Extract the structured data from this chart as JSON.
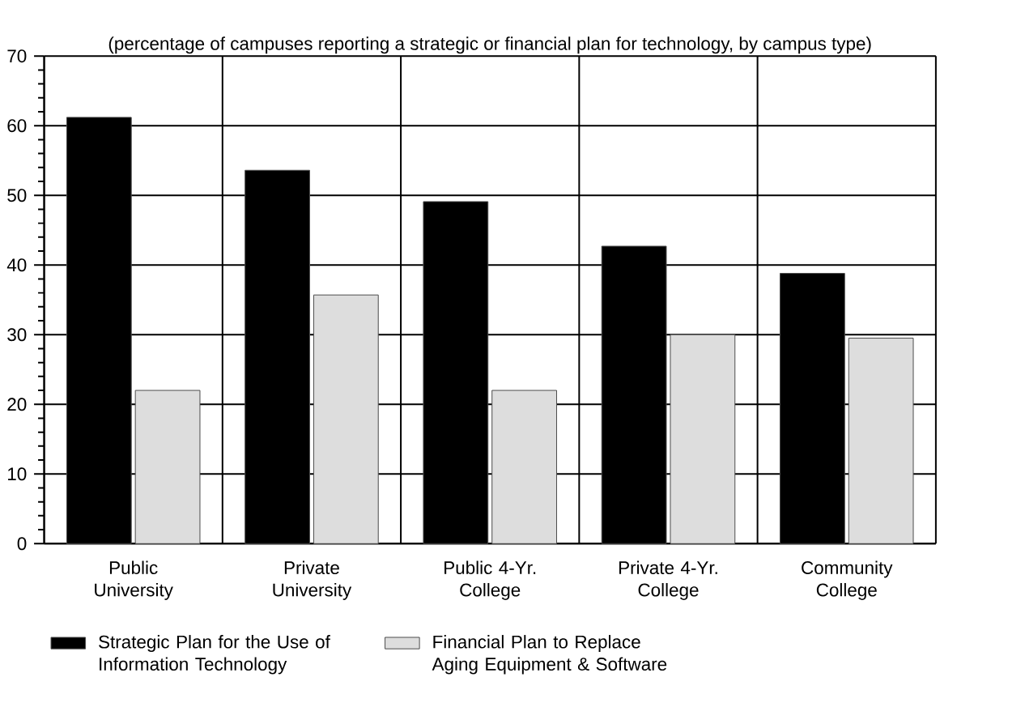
{
  "chart_data": {
    "type": "bar",
    "subtitle": "(percentage of campuses reporting a strategic or financial plan for technology, by campus type)",
    "categories": [
      "Public University",
      "Private University",
      "Public 4-Yr. College",
      "Private 4-Yr. College",
      "Community College"
    ],
    "series": [
      {
        "name": "Strategic Plan for the Use of Information Technology",
        "color": "#000000",
        "values": [
          61.2,
          53.6,
          49.1,
          42.7,
          38.8
        ]
      },
      {
        "name": "Financial Plan to Replace Aging Equipment & Software",
        "color": "#dddddd",
        "values": [
          22.0,
          35.7,
          22.0,
          30.0,
          29.5
        ]
      }
    ],
    "ylim": [
      0,
      70
    ],
    "yticks": [
      0,
      10,
      20,
      30,
      40,
      50,
      60,
      70
    ],
    "grid": true,
    "legend": "bottom"
  }
}
